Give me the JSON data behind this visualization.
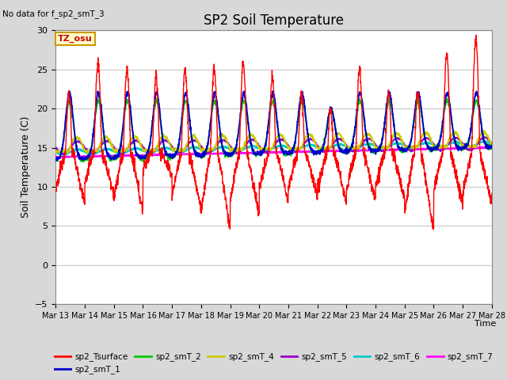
{
  "title": "SP2 Soil Temperature",
  "ylabel": "Soil Temperature (C)",
  "xlabel": "Time",
  "no_data_text": "No data for f_sp2_smT_3",
  "tz_label": "TZ_osu",
  "ylim": [
    -5,
    30
  ],
  "yticks": [
    -5,
    0,
    5,
    10,
    15,
    20,
    25,
    30
  ],
  "xtick_labels": [
    "Mar 13",
    "Mar 14",
    "Mar 15",
    "Mar 16",
    "Mar 17",
    "Mar 18",
    "Mar 19",
    "Mar 20",
    "Mar 21",
    "Mar 22",
    "Mar 23",
    "Mar 24",
    "Mar 25",
    "Mar 26",
    "Mar 27",
    "Mar 28"
  ],
  "fig_bg_color": "#d8d8d8",
  "plot_bg_color": "#ffffff",
  "grid_color": "#d0d0d0",
  "series_colors": {
    "sp2_Tsurface": "#ff0000",
    "sp2_smT_1": "#0000cc",
    "sp2_smT_2": "#00cc00",
    "sp2_smT_4": "#cccc00",
    "sp2_smT_5": "#9900cc",
    "sp2_smT_6": "#00cccc",
    "sp2_smT_7": "#ff00ff"
  },
  "legend_entries": [
    {
      "label": "sp2_Tsurface",
      "color": "#ff0000"
    },
    {
      "label": "sp2_smT_1",
      "color": "#0000cc"
    },
    {
      "label": "sp2_smT_2",
      "color": "#00cc00"
    },
    {
      "label": "sp2_smT_4",
      "color": "#cccc00"
    },
    {
      "label": "sp2_smT_5",
      "color": "#9900cc"
    },
    {
      "label": "sp2_smT_6",
      "color": "#00cccc"
    },
    {
      "label": "sp2_smT_7",
      "color": "#ff00ff"
    }
  ],
  "n_days": 15,
  "pts_per_day": 144
}
